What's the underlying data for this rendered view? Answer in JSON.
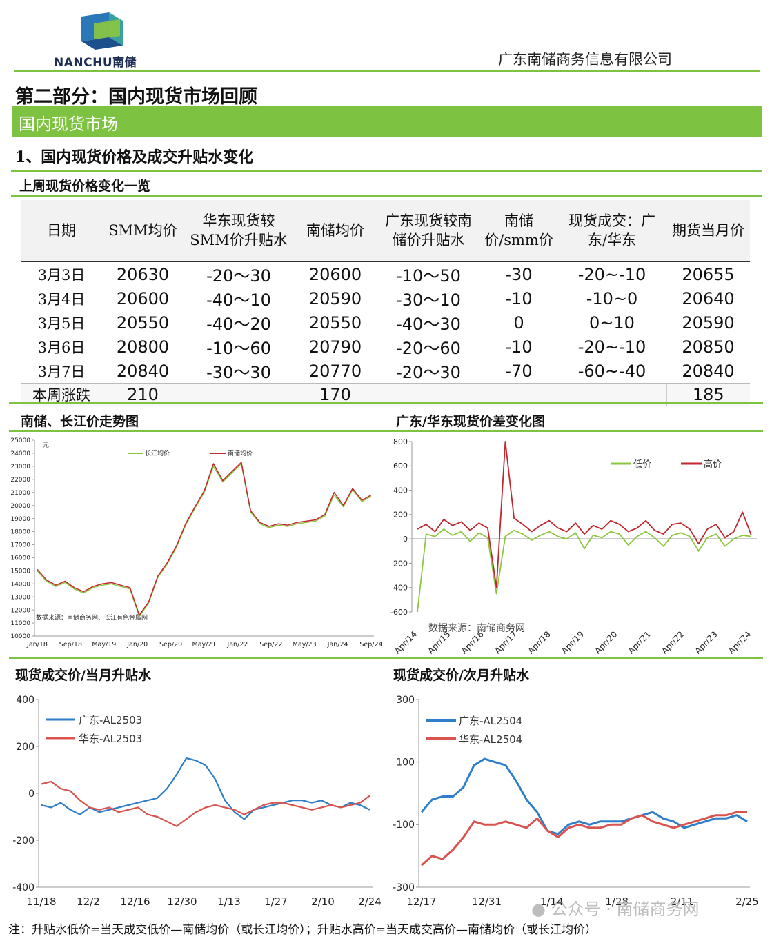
{
  "header": {
    "logo_text": "NANCHU南储",
    "company": "广东南储商务信息有限公司"
  },
  "part_title": "第二部分：国内现货市场回顾",
  "section_bar": "国内现货市场",
  "subsection": "1、国内现货价格及成交升贴水变化",
  "table_section": {
    "title": "上周现货价格变化一览",
    "headers": [
      "日期",
      "SMM均价",
      "华东现货较SMM价升贴水",
      "南储均价",
      "广东现货较南储价升贴水",
      "南储价/smm价",
      "现货成交：广东/华东",
      "期货当月价"
    ],
    "rows": [
      [
        "3月3日",
        "20630",
        "-20～30",
        "20600",
        "-10～50",
        "-30",
        "-20~-10",
        "20655"
      ],
      [
        "3月4日",
        "20600",
        "-40～10",
        "20590",
        "-30～10",
        "-10",
        "-10~0",
        "20640"
      ],
      [
        "3月5日",
        "20550",
        "-40～20",
        "20550",
        "-40～30",
        "0",
        "0~10",
        "20590"
      ],
      [
        "3月6日",
        "20800",
        "-10～60",
        "20790",
        "-20～60",
        "-10",
        "-20~-10",
        "20850"
      ],
      [
        "3月7日",
        "20840",
        "-30～30",
        "20770",
        "-20～30",
        "-70",
        "-60~-40",
        "20840"
      ]
    ],
    "total_row": [
      "本周涨跌",
      "210",
      "",
      "170",
      "",
      "",
      "",
      "185"
    ]
  },
  "chart_titles": {
    "trend": "南储、长江价走势图",
    "spread": "广东/华东现货价差变化图",
    "cur_month": "现货成交价/当月升贴水",
    "next_month": "现货成交价/次月升贴水"
  },
  "chart_data": [
    {
      "type": "line",
      "ylim": [
        10000,
        25000
      ],
      "y_ticks": [
        "25000",
        "24000",
        "23000",
        "22000",
        "21000",
        "20000",
        "19000",
        "18000",
        "17000",
        "16000",
        "15000",
        "14000",
        "13000",
        "12000",
        "11000",
        "10000"
      ],
      "x_ticks": [
        "Jan/18",
        "Sep/18",
        "May/19",
        "Jan/20",
        "Sep/20",
        "May/21",
        "Jan/22",
        "Sep/22",
        "May/23",
        "Jan/24",
        "Sep/24"
      ],
      "unit": "元",
      "annotation": "数据来源：南储商务网、长江有色金属网",
      "series": [
        {
          "name": "长江均价",
          "color": "#8dc63f",
          "values": [
            15000,
            14200,
            13800,
            14100,
            13600,
            13300,
            13700,
            13900,
            14000,
            13800,
            13600,
            11500,
            12500,
            14500,
            15500,
            16800,
            18500,
            19800,
            21000,
            23000,
            21800,
            22500,
            23200,
            19500,
            18600,
            18300,
            18500,
            18400,
            18600,
            18700,
            18800,
            19200,
            20800,
            19900,
            21200,
            20300,
            20700
          ]
        },
        {
          "name": "南储均价",
          "color": "#c1272d",
          "values": [
            15100,
            14300,
            13900,
            14200,
            13700,
            13400,
            13800,
            14000,
            14100,
            13900,
            13700,
            11600,
            12600,
            14600,
            15600,
            16900,
            18600,
            19900,
            21100,
            23200,
            21900,
            22600,
            23300,
            19600,
            18700,
            18400,
            18600,
            18500,
            18700,
            18800,
            18900,
            19300,
            21000,
            20000,
            21300,
            20400,
            20800
          ]
        }
      ]
    },
    {
      "type": "line",
      "ylim": [
        -600,
        800
      ],
      "y_ticks": [
        "800",
        "600",
        "400",
        "200",
        "0",
        "-200",
        "-400",
        "-600"
      ],
      "x_ticks": [
        "Apr/14",
        "Apr/15",
        "Apr/16",
        "Apr/17",
        "Apr/18",
        "Apr/19",
        "Apr/20",
        "Apr/21",
        "Apr/22",
        "Apr/23",
        "Apr/24"
      ],
      "annotation": "数据来源：南储商务网",
      "series": [
        {
          "name": "低价",
          "color": "#8dc63f",
          "values": [
            -600,
            40,
            20,
            80,
            30,
            60,
            -20,
            50,
            10,
            -450,
            20,
            70,
            40,
            -10,
            30,
            60,
            20,
            0,
            50,
            -80,
            30,
            10,
            60,
            40,
            -50,
            20,
            60,
            10,
            -60,
            30,
            50,
            20,
            -100,
            10,
            40,
            -60,
            0,
            30,
            20
          ]
        },
        {
          "name": "高价",
          "color": "#c1272d",
          "values": [
            80,
            120,
            60,
            160,
            110,
            140,
            70,
            130,
            90,
            -400,
            800,
            170,
            120,
            60,
            110,
            150,
            90,
            60,
            130,
            40,
            110,
            80,
            150,
            120,
            60,
            90,
            150,
            70,
            40,
            120,
            130,
            80,
            -40,
            80,
            120,
            10,
            60,
            220,
            30
          ]
        }
      ]
    },
    {
      "type": "line",
      "ylim": [
        -400,
        400
      ],
      "y_ticks": [
        "400",
        "200",
        "0",
        "-200",
        "-400"
      ],
      "x_ticks": [
        "11/18",
        "12/2",
        "12/16",
        "12/30",
        "1/13",
        "1/27",
        "2/10",
        "2/24"
      ],
      "series": [
        {
          "name": "广东-AL2503",
          "color": "#2e7ec9",
          "values": [
            -50,
            -60,
            -40,
            -70,
            -90,
            -60,
            -80,
            -70,
            -60,
            -50,
            -40,
            -30,
            -20,
            20,
            80,
            150,
            140,
            120,
            60,
            -30,
            -80,
            -110,
            -70,
            -60,
            -50,
            -40,
            -30,
            -30,
            -40,
            -30,
            -50,
            -60,
            -40,
            -50,
            -70
          ]
        },
        {
          "name": "华东-AL2503",
          "color": "#d9534f",
          "values": [
            40,
            50,
            20,
            10,
            -30,
            -60,
            -70,
            -60,
            -80,
            -70,
            -60,
            -90,
            -100,
            -120,
            -140,
            -110,
            -80,
            -60,
            -50,
            -60,
            -70,
            -90,
            -70,
            -50,
            -40,
            -40,
            -50,
            -60,
            -70,
            -60,
            -50,
            -60,
            -50,
            -40,
            -10
          ]
        }
      ]
    },
    {
      "type": "line",
      "ylim": [
        -300,
        300
      ],
      "y_ticks": [
        "300",
        "100",
        "-100",
        "-300"
      ],
      "x_ticks": [
        "12/17",
        "12/31",
        "1/14",
        "1/28",
        "2/11",
        "2/25"
      ],
      "series": [
        {
          "name": "广东-AL2504",
          "color": "#2e7ec9",
          "values": [
            -60,
            -20,
            -10,
            -10,
            20,
            90,
            110,
            100,
            90,
            40,
            -20,
            -60,
            -120,
            -130,
            -100,
            -90,
            -100,
            -90,
            -90,
            -90,
            -80,
            -70,
            -60,
            -80,
            -90,
            -110,
            -100,
            -90,
            -80,
            -80,
            -70,
            -90
          ]
        },
        {
          "name": "华东-AL2504",
          "color": "#d9534f",
          "values": [
            -230,
            -200,
            -210,
            -180,
            -140,
            -90,
            -100,
            -100,
            -90,
            -100,
            -110,
            -80,
            -120,
            -140,
            -110,
            -100,
            -110,
            -110,
            -100,
            -100,
            -80,
            -70,
            -90,
            -100,
            -110,
            -100,
            -90,
            -80,
            -70,
            -70,
            -60,
            -60
          ]
        }
      ]
    }
  ],
  "legend_labels": {
    "trend_a": "长江均价",
    "trend_b": "南储均价",
    "spread_a": "低价",
    "spread_b": "高价",
    "cur_a": "广东-AL2503",
    "cur_b": "华东-AL2503",
    "next_a": "广东-AL2504",
    "next_b": "华东-AL2504"
  },
  "annotations": {
    "trend_unit": "元",
    "trend_source": "数据来源：南储商务网、长江有色金属网",
    "spread_source": "数据来源：南储商务网"
  },
  "watermark": "公众号 · 南储商务网",
  "footnote": "注：升贴水低价=当天成交低价—南储均价（或长江均价）；升贴水高价=当天成交高价—南储均价（或长江均价）"
}
